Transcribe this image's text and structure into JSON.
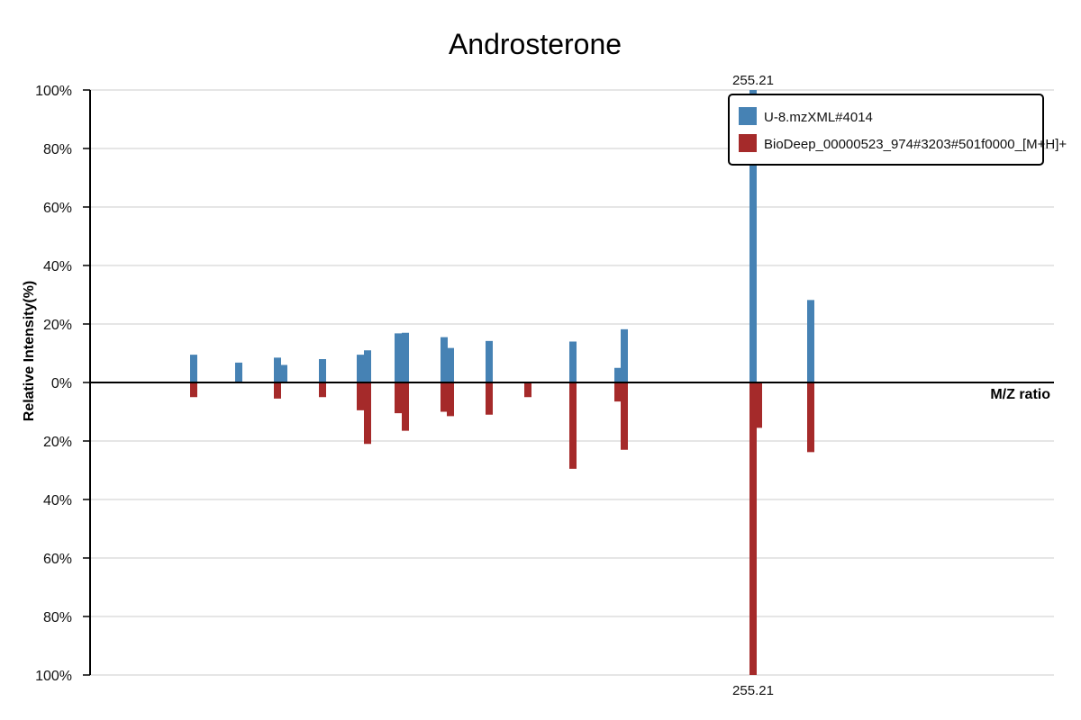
{
  "chart_data": {
    "type": "bar",
    "subtype": "mirror-mass-spectrum",
    "title": "Androsterone",
    "xlabel": "M/Z ratio",
    "ylabel": "Relative Intensity(%)",
    "ylim_top": [
      0,
      100
    ],
    "ylim_bottom": [
      0,
      100
    ],
    "y_ticks_top": [
      "0%",
      "20%",
      "40%",
      "60%",
      "80%",
      "100%"
    ],
    "y_ticks_bottom": [
      "20%",
      "40%",
      "60%",
      "80%",
      "100%"
    ],
    "grid": true,
    "legend_position": "top-right",
    "series": [
      {
        "name": "U-8.mzXML#4014",
        "color": "#4682b4",
        "direction": "up",
        "peaks": [
          {
            "i": 0,
            "v": 9.5
          },
          {
            "i": 1,
            "v": 6.8
          },
          {
            "i": 2,
            "v": 8.5
          },
          {
            "i": 3,
            "v": 6.0
          },
          {
            "i": 4,
            "v": 8.0
          },
          {
            "i": 5,
            "v": 9.5
          },
          {
            "i": 6,
            "v": 11.0
          },
          {
            "i": 7,
            "v": 16.8
          },
          {
            "i": 8,
            "v": 17.0
          },
          {
            "i": 9,
            "v": 15.5
          },
          {
            "i": 10,
            "v": 11.8
          },
          {
            "i": 11,
            "v": 14.2
          },
          {
            "i": 13,
            "v": 14.0
          },
          {
            "i": 14,
            "v": 5.0
          },
          {
            "i": 15,
            "v": 18.2
          },
          {
            "i": 16,
            "v": 100
          },
          {
            "i": 18,
            "v": 28.2
          }
        ]
      },
      {
        "name": "BioDeep_00000523_974#3203#501f0000_[M+H]+",
        "color": "#a52a2a",
        "direction": "down",
        "peaks": [
          {
            "i": 0,
            "v": 5.0
          },
          {
            "i": 2,
            "v": 5.5
          },
          {
            "i": 4,
            "v": 5.0
          },
          {
            "i": 5,
            "v": 9.5
          },
          {
            "i": 6,
            "v": 21.0
          },
          {
            "i": 7,
            "v": 10.5
          },
          {
            "i": 8,
            "v": 16.5
          },
          {
            "i": 9,
            "v": 10.0
          },
          {
            "i": 10,
            "v": 11.5
          },
          {
            "i": 11,
            "v": 11.0
          },
          {
            "i": 12,
            "v": 5.0
          },
          {
            "i": 13,
            "v": 29.5
          },
          {
            "i": 14,
            "v": 6.5
          },
          {
            "i": 15,
            "v": 23.0
          },
          {
            "i": 16,
            "v": 100
          },
          {
            "i": 17,
            "v": 15.5
          },
          {
            "i": 18,
            "v": 23.8
          }
        ]
      }
    ],
    "annotations": [
      {
        "text": "255.21",
        "series": 0,
        "i": 16
      },
      {
        "text": "255.21",
        "series": 1,
        "i": 16
      }
    ]
  }
}
